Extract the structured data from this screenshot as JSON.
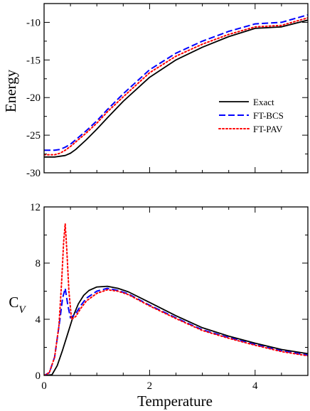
{
  "chart_data": [
    {
      "type": "line",
      "panel": "top",
      "ylabel": "Energy",
      "xlabel": "",
      "xlim": [
        0,
        5
      ],
      "ylim": [
        -30,
        -7.5
      ],
      "xticks": [
        0,
        2,
        4
      ],
      "xtick_labels": [
        "",
        "",
        ""
      ],
      "yticks": [
        -30,
        -25,
        -20,
        -15,
        -10
      ],
      "ytick_labels": [
        "-30",
        "-25",
        "-20",
        "-15",
        "-10"
      ],
      "grid": false,
      "legend": "center-right",
      "series": [
        {
          "name": "Exact",
          "color": "#000000",
          "dash": "solid",
          "x": [
            0,
            0.2,
            0.4,
            0.5,
            0.6,
            0.8,
            1.0,
            1.2,
            1.5,
            2.0,
            2.5,
            3.0,
            3.5,
            4.0,
            4.5,
            5.0
          ],
          "y": [
            -27.9,
            -27.9,
            -27.7,
            -27.4,
            -26.9,
            -25.6,
            -24.2,
            -22.7,
            -20.5,
            -17.3,
            -15.0,
            -13.3,
            -11.9,
            -10.8,
            -10.6,
            -9.7
          ]
        },
        {
          "name": "FT-BCS",
          "color": "#0000ff",
          "dash": "dashed",
          "x": [
            0,
            0.2,
            0.3,
            0.4,
            0.5,
            0.6,
            0.8,
            1.0,
            1.2,
            1.5,
            2.0,
            2.5,
            3.0,
            3.5,
            4.0,
            4.5,
            5.0
          ],
          "y": [
            -27.0,
            -27.0,
            -26.9,
            -26.6,
            -26.2,
            -25.6,
            -24.4,
            -23.1,
            -21.6,
            -19.5,
            -16.3,
            -14.1,
            -12.5,
            -11.2,
            -10.2,
            -10.0,
            -9.0
          ]
        },
        {
          "name": "FT-PAV",
          "color": "#ff0000",
          "dash": "dotted",
          "x": [
            0,
            0.2,
            0.3,
            0.4,
            0.5,
            0.6,
            0.8,
            1.0,
            1.2,
            1.5,
            2.0,
            2.5,
            3.0,
            3.5,
            4.0,
            4.5,
            5.0
          ],
          "y": [
            -27.6,
            -27.6,
            -27.4,
            -27.0,
            -26.5,
            -25.9,
            -24.7,
            -23.4,
            -21.9,
            -19.9,
            -16.7,
            -14.5,
            -12.9,
            -11.6,
            -10.6,
            -10.4,
            -9.4
          ]
        }
      ]
    },
    {
      "type": "line",
      "panel": "bottom",
      "ylabel": "C_V",
      "xlabel": "Temperature",
      "xlim": [
        0,
        5
      ],
      "ylim": [
        0,
        12
      ],
      "xticks": [
        0,
        2,
        4
      ],
      "xtick_labels": [
        "0",
        "2",
        "4"
      ],
      "yticks": [
        0,
        4,
        8,
        12
      ],
      "ytick_labels": [
        "0",
        "4",
        "8",
        "12"
      ],
      "grid": false,
      "series": [
        {
          "name": "Exact",
          "color": "#000000",
          "dash": "solid",
          "x": [
            0,
            0.15,
            0.25,
            0.35,
            0.45,
            0.55,
            0.65,
            0.75,
            0.85,
            1.0,
            1.2,
            1.4,
            1.6,
            2.0,
            2.5,
            3.0,
            3.5,
            4.0,
            4.5,
            5.0
          ],
          "y": [
            0,
            0.05,
            0.7,
            1.8,
            3.0,
            4.2,
            5.1,
            5.7,
            6.05,
            6.3,
            6.35,
            6.2,
            5.95,
            5.2,
            4.25,
            3.4,
            2.8,
            2.3,
            1.85,
            1.55
          ]
        },
        {
          "name": "FT-BCS",
          "color": "#0000ff",
          "dash": "dashed",
          "x": [
            0,
            0.1,
            0.2,
            0.3,
            0.35,
            0.4,
            0.45,
            0.5,
            0.6,
            0.7,
            0.8,
            1.0,
            1.2,
            1.4,
            1.6,
            2.0,
            2.5,
            3.0,
            3.5,
            4.0,
            4.5,
            5.0
          ],
          "y": [
            0,
            0.2,
            1.3,
            4.0,
            5.5,
            6.2,
            5.0,
            4.1,
            4.4,
            5.0,
            5.5,
            6.0,
            6.2,
            6.05,
            5.8,
            5.0,
            4.1,
            3.25,
            2.7,
            2.2,
            1.75,
            1.45
          ]
        },
        {
          "name": "FT-PAV",
          "color": "#ff0000",
          "dash": "dotted",
          "x": [
            0,
            0.1,
            0.2,
            0.28,
            0.33,
            0.37,
            0.4,
            0.43,
            0.47,
            0.52,
            0.6,
            0.7,
            0.8,
            1.0,
            1.2,
            1.4,
            1.6,
            2.0,
            2.5,
            3.0,
            3.5,
            4.0,
            4.5,
            5.0
          ],
          "y": [
            0,
            0.2,
            1.3,
            3.5,
            6.5,
            9.5,
            10.8,
            9.0,
            6.0,
            4.0,
            4.2,
            4.8,
            5.3,
            5.85,
            6.1,
            6.0,
            5.75,
            4.95,
            4.05,
            3.2,
            2.65,
            2.15,
            1.7,
            1.4
          ]
        }
      ]
    }
  ]
}
